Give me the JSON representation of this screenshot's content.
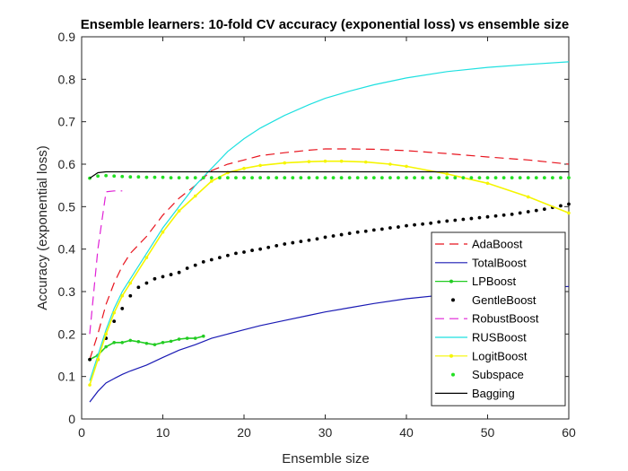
{
  "chart_data": {
    "type": "line",
    "title": "Ensemble learners: 10-fold CV accuracy (exponential loss) vs ensemble size",
    "xlabel": "Ensemble size",
    "ylabel": "Accuracy (exponential loss)",
    "xlim": [
      0,
      60
    ],
    "ylim": [
      0,
      0.9
    ],
    "xticks": [
      0,
      10,
      20,
      30,
      40,
      50,
      60
    ],
    "yticks": [
      0,
      0.1,
      0.2,
      0.3,
      0.4,
      0.5,
      0.6,
      0.7,
      0.8,
      0.9
    ],
    "grid": false,
    "legend_position": "bottom-right",
    "series": [
      {
        "name": "AdaBoost",
        "color": "#e8141e",
        "style": "dashed",
        "x": [
          1,
          2,
          3,
          4,
          5,
          6,
          8,
          10,
          12,
          14,
          16,
          18,
          20,
          22,
          25,
          28,
          30,
          33,
          36,
          40,
          45,
          50,
          55,
          60
        ],
        "y": [
          0.14,
          0.2,
          0.27,
          0.32,
          0.36,
          0.39,
          0.43,
          0.48,
          0.52,
          0.55,
          0.585,
          0.6,
          0.61,
          0.62,
          0.627,
          0.633,
          0.636,
          0.636,
          0.635,
          0.632,
          0.625,
          0.617,
          0.61,
          0.6
        ]
      },
      {
        "name": "TotalBoost",
        "color": "#1a1ab4",
        "style": "solid",
        "x": [
          1,
          2,
          3,
          4,
          5,
          6,
          8,
          10,
          12,
          14,
          16,
          18,
          20,
          22,
          25,
          28,
          30,
          33,
          36,
          40,
          45,
          50,
          55,
          60
        ],
        "y": [
          0.04,
          0.065,
          0.085,
          0.095,
          0.105,
          0.113,
          0.127,
          0.145,
          0.162,
          0.175,
          0.19,
          0.2,
          0.21,
          0.22,
          0.232,
          0.244,
          0.252,
          0.262,
          0.272,
          0.283,
          0.293,
          0.302,
          0.308,
          0.312
        ]
      },
      {
        "name": "LPBoost",
        "color": "#22cc22",
        "style": "solid-marker",
        "x": [
          1,
          2,
          3,
          4,
          5,
          6,
          7,
          8,
          9,
          10,
          11,
          12,
          13,
          14,
          15
        ],
        "y": [
          0.14,
          0.15,
          0.17,
          0.18,
          0.18,
          0.185,
          0.182,
          0.178,
          0.175,
          0.18,
          0.183,
          0.188,
          0.19,
          0.19,
          0.195
        ]
      },
      {
        "name": "GentleBoost",
        "color": "#000000",
        "style": "dots",
        "x": [
          1,
          2,
          3,
          4,
          5,
          6,
          7,
          8,
          9,
          10,
          11,
          12,
          13,
          14,
          15,
          16,
          17,
          18,
          19,
          20,
          21,
          22,
          23,
          24,
          25,
          26,
          27,
          28,
          29,
          30,
          31,
          32,
          33,
          34,
          35,
          36,
          37,
          38,
          39,
          40,
          41,
          42,
          43,
          44,
          45,
          46,
          47,
          48,
          49,
          50,
          51,
          52,
          53,
          54,
          55,
          56,
          57,
          58,
          59,
          60
        ],
        "y": [
          0.14,
          0.14,
          0.19,
          0.23,
          0.26,
          0.29,
          0.31,
          0.32,
          0.33,
          0.335,
          0.34,
          0.345,
          0.355,
          0.362,
          0.37,
          0.375,
          0.38,
          0.385,
          0.39,
          0.393,
          0.397,
          0.4,
          0.404,
          0.408,
          0.412,
          0.415,
          0.418,
          0.421,
          0.424,
          0.428,
          0.431,
          0.434,
          0.437,
          0.44,
          0.442,
          0.445,
          0.447,
          0.45,
          0.452,
          0.455,
          0.457,
          0.459,
          0.461,
          0.464,
          0.466,
          0.468,
          0.47,
          0.472,
          0.474,
          0.476,
          0.478,
          0.48,
          0.482,
          0.485,
          0.488,
          0.491,
          0.494,
          0.498,
          0.502,
          0.506
        ]
      },
      {
        "name": "RobustBoost",
        "color": "#e020d6",
        "style": "dashed",
        "x": [
          1,
          2,
          3,
          4,
          5
        ],
        "y": [
          0.2,
          0.4,
          0.535,
          0.537,
          0.537
        ]
      },
      {
        "name": "RUSBoost",
        "color": "#1ee0e0",
        "style": "solid",
        "x": [
          1,
          2,
          3,
          4,
          5,
          6,
          8,
          10,
          12,
          14,
          16,
          18,
          20,
          22,
          25,
          28,
          30,
          33,
          36,
          40,
          45,
          50,
          55,
          60
        ],
        "y": [
          0.09,
          0.15,
          0.21,
          0.26,
          0.3,
          0.33,
          0.39,
          0.45,
          0.5,
          0.55,
          0.59,
          0.63,
          0.66,
          0.685,
          0.715,
          0.74,
          0.755,
          0.772,
          0.787,
          0.803,
          0.818,
          0.828,
          0.835,
          0.841
        ]
      },
      {
        "name": "LogitBoost",
        "color": "#f5f500",
        "style": "solid-marker",
        "x": [
          1,
          2,
          3,
          4,
          5,
          6,
          8,
          10,
          12,
          14,
          16,
          18,
          20,
          22,
          25,
          28,
          30,
          32,
          35,
          38,
          40,
          45,
          50,
          55,
          60
        ],
        "y": [
          0.08,
          0.14,
          0.2,
          0.25,
          0.29,
          0.32,
          0.38,
          0.44,
          0.49,
          0.525,
          0.56,
          0.58,
          0.59,
          0.597,
          0.603,
          0.606,
          0.607,
          0.607,
          0.605,
          0.6,
          0.595,
          0.577,
          0.555,
          0.523,
          0.485
        ]
      },
      {
        "name": "Subspace",
        "color": "#22e022",
        "style": "dots",
        "x": [
          1,
          2,
          3,
          4,
          5,
          6,
          7,
          8,
          9,
          10,
          11,
          12,
          13,
          14,
          15,
          16,
          17,
          18,
          19,
          20,
          21,
          22,
          23,
          24,
          25,
          26,
          27,
          28,
          29,
          30,
          31,
          32,
          33,
          34,
          35,
          36,
          37,
          38,
          39,
          40,
          41,
          42,
          43,
          44,
          45,
          46,
          47,
          48,
          49,
          50,
          51,
          52,
          53,
          54,
          55,
          56,
          57,
          58,
          59,
          60
        ],
        "y": [
          0.567,
          0.572,
          0.573,
          0.572,
          0.571,
          0.57,
          0.57,
          0.569,
          0.569,
          0.569,
          0.568,
          0.568,
          0.568,
          0.568,
          0.568,
          0.568,
          0.568,
          0.568,
          0.568,
          0.568,
          0.568,
          0.568,
          0.568,
          0.568,
          0.568,
          0.568,
          0.568,
          0.568,
          0.568,
          0.568,
          0.568,
          0.568,
          0.568,
          0.568,
          0.568,
          0.568,
          0.568,
          0.568,
          0.568,
          0.568,
          0.568,
          0.568,
          0.568,
          0.568,
          0.568,
          0.568,
          0.568,
          0.568,
          0.568,
          0.568,
          0.568,
          0.568,
          0.568,
          0.568,
          0.568,
          0.568,
          0.568,
          0.568,
          0.568,
          0.568
        ]
      },
      {
        "name": "Bagging",
        "color": "#000000",
        "style": "solid",
        "x": [
          1,
          2,
          3,
          5,
          10,
          20,
          30,
          40,
          50,
          60
        ],
        "y": [
          0.567,
          0.58,
          0.582,
          0.582,
          0.582,
          0.582,
          0.582,
          0.582,
          0.582,
          0.582
        ]
      }
    ]
  }
}
